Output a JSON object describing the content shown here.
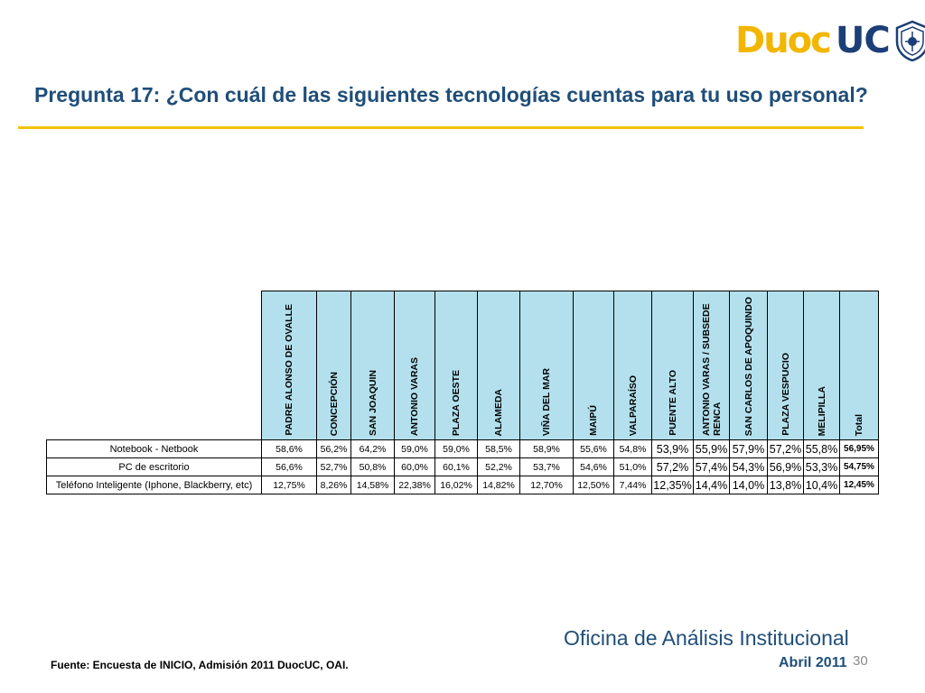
{
  "logo": {
    "part1": "Duoc",
    "part2": "UC"
  },
  "title": "Pregunta 17: ¿Con cuál de las siguientes tecnologías  cuentas para tu uso personal?",
  "table": {
    "columns": [
      "PADRE ALONSO DE OVALLE",
      "CONCEPCIÓN",
      "SAN JOAQUIN",
      "ANTONIO VARAS",
      "PLAZA OESTE",
      "ALAMEDA",
      "VIÑA DEL MAR",
      "MAIPÚ",
      "VALPARAÍSO",
      "PUENTE ALTO",
      "ANTONIO VARAS / SUBSEDE RENCA",
      "SAN CARLOS DE APOQUINDO",
      "PLAZA VESPUCIO",
      "MELIPILLA",
      "Total"
    ],
    "rows": [
      {
        "label": "Notebook - Netbook",
        "values": [
          "58,6%",
          "56,2%",
          "64,2%",
          "59,0%",
          "59,0%",
          "58,5%",
          "58,9%",
          "55,6%",
          "54,8%",
          "53,9%",
          "55,9%",
          "57,9%",
          "57,2%",
          "55,8%",
          "56,95%"
        ]
      },
      {
        "label": "PC de escritorio",
        "values": [
          "56,6%",
          "52,7%",
          "50,8%",
          "60,0%",
          "60,1%",
          "52,2%",
          "53,7%",
          "54,6%",
          "51,0%",
          "57,2%",
          "57,4%",
          "54,3%",
          "56,9%",
          "53,3%",
          "54,75%"
        ]
      },
      {
        "label": "Teléfono Inteligente (Iphone, Blackberry, etc)",
        "values": [
          "12,75%",
          "8,26%",
          "14,58%",
          "22,38%",
          "16,02%",
          "14,82%",
          "12,70%",
          "12,50%",
          "7,44%",
          "12,35%",
          "14,4%",
          "14,0%",
          "13,8%",
          "10,4%",
          "12,45%"
        ]
      }
    ]
  },
  "footer": {
    "source": "Fuente: Encuesta de INICIO, Admisión 2011 DuocUC, OAI.",
    "office": "Oficina de Análisis Institucional",
    "date": "Abril 2011",
    "page": "30"
  },
  "colors": {
    "title": "#1f4e79",
    "rule": "#f2c200",
    "header_fill": "#b3e0ec",
    "logo_yellow": "#f2b600",
    "logo_blue": "#1c3f78"
  }
}
